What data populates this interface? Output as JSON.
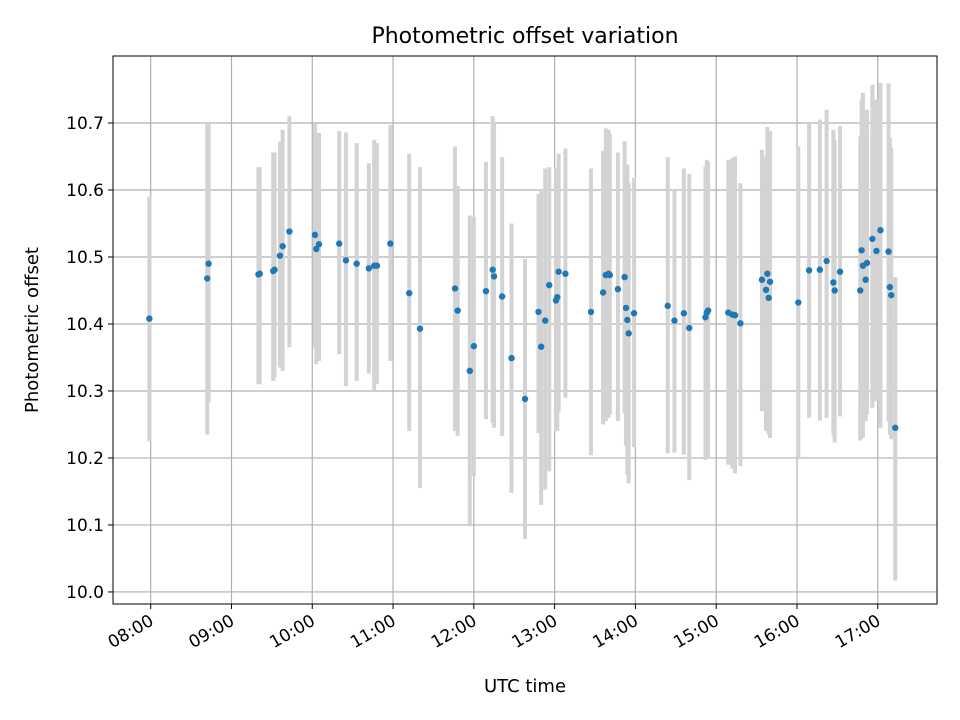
{
  "chart_data": {
    "type": "scatter",
    "title": "Photometric offset variation",
    "xlabel": "UTC time",
    "ylabel": "Photometric offset",
    "x_ticks": [
      "08:00",
      "09:00",
      "10:00",
      "11:00",
      "12:00",
      "13:00",
      "14:00",
      "15:00",
      "16:00",
      "17:00"
    ],
    "y_ticks": [
      "10.0",
      "10.1",
      "10.2",
      "10.3",
      "10.4",
      "10.5",
      "10.6",
      "10.7"
    ],
    "xlim": [
      "07:32",
      "17:44"
    ],
    "ylim": [
      9.982,
      10.8
    ],
    "grid": true,
    "colors": {
      "point": "#1f77b4",
      "errorbar": "#d3d3d3",
      "grid": "#b0b0b0"
    },
    "series": [
      {
        "time": [
          "07:59",
          "08:42",
          "08:43",
          "09:20",
          "09:21",
          "09:31",
          "09:32",
          "09:36",
          "09:38",
          "09:43",
          "10:02",
          "10:03",
          "10:05",
          "10:20",
          "10:25",
          "10:33",
          "10:42",
          "10:46",
          "10:48",
          "10:58",
          "11:12",
          "11:20",
          "11:46",
          "11:48",
          "11:57",
          "12:00",
          "12:09",
          "12:14",
          "12:15",
          "12:21",
          "12:28",
          "12:38",
          "12:48",
          "12:50",
          "12:53",
          "12:56",
          "13:01",
          "13:02",
          "13:03",
          "13:08",
          "13:27",
          "13:36",
          "13:38",
          "13:40",
          "13:41",
          "13:47",
          "13:52",
          "13:53",
          "13:54",
          "13:55",
          "13:59",
          "14:24",
          "14:29",
          "14:36",
          "14:40",
          "14:52",
          "14:53",
          "14:54",
          "15:09",
          "15:12",
          "15:14",
          "15:18",
          "15:34",
          "15:37",
          "15:38",
          "15:39",
          "15:40",
          "16:01",
          "16:09",
          "16:17",
          "16:22",
          "16:27",
          "16:28",
          "16:32",
          "16:47",
          "16:48",
          "16:49",
          "16:51",
          "16:52",
          "16:56",
          "16:59",
          "17:02",
          "17:08",
          "17:09",
          "17:10",
          "17:13"
        ],
        "y": [
          10.408,
          10.468,
          10.49,
          10.474,
          10.475,
          10.479,
          10.481,
          10.502,
          10.516,
          10.538,
          10.533,
          10.512,
          10.519,
          10.52,
          10.495,
          10.49,
          10.483,
          10.487,
          10.487,
          10.52,
          10.446,
          10.393,
          10.453,
          10.42,
          10.33,
          10.367,
          10.449,
          10.481,
          10.471,
          10.441,
          10.349,
          10.288,
          10.418,
          10.366,
          10.405,
          10.458,
          10.435,
          10.44,
          10.478,
          10.475,
          10.418,
          10.447,
          10.473,
          10.475,
          10.473,
          10.452,
          10.47,
          10.424,
          10.406,
          10.386,
          10.416,
          10.427,
          10.405,
          10.416,
          10.394,
          10.41,
          10.417,
          10.42,
          10.417,
          10.414,
          10.413,
          10.401,
          10.466,
          10.451,
          10.475,
          10.439,
          10.463,
          10.432,
          10.48,
          10.481,
          10.494,
          10.462,
          10.45,
          10.478,
          10.45,
          10.51,
          10.487,
          10.466,
          10.491,
          10.527,
          10.509,
          10.54,
          10.508,
          10.455,
          10.443,
          10.245
        ],
        "err_low": [
          10.225,
          10.235,
          10.283,
          10.31,
          10.31,
          10.315,
          10.32,
          10.335,
          10.33,
          10.365,
          10.365,
          10.34,
          10.345,
          10.355,
          10.307,
          10.315,
          10.326,
          10.3,
          10.31,
          10.345,
          10.24,
          10.155,
          10.24,
          10.233,
          10.098,
          10.173,
          10.258,
          10.252,
          10.245,
          10.233,
          10.148,
          10.079,
          10.237,
          10.13,
          10.153,
          10.18,
          10.24,
          10.24,
          10.268,
          10.29,
          10.204,
          10.25,
          10.255,
          10.26,
          10.265,
          10.255,
          10.267,
          10.218,
          10.175,
          10.162,
          10.216,
          10.207,
          10.208,
          10.205,
          10.167,
          10.197,
          10.2,
          10.2,
          10.19,
          10.184,
          10.177,
          10.188,
          10.27,
          10.24,
          10.25,
          10.235,
          10.23,
          10.2,
          10.26,
          10.256,
          10.26,
          10.234,
          10.223,
          10.262,
          10.226,
          10.265,
          10.23,
          10.255,
          10.265,
          10.275,
          10.285,
          10.245,
          10.255,
          10.235,
          10.228,
          10.017
        ],
        "err_high": [
          10.59,
          10.7,
          10.7,
          10.634,
          10.634,
          10.656,
          10.656,
          10.672,
          10.69,
          10.71,
          10.7,
          10.685,
          10.685,
          10.688,
          10.686,
          10.67,
          10.64,
          10.675,
          10.67,
          10.697,
          10.654,
          10.634,
          10.665,
          10.606,
          10.562,
          10.56,
          10.642,
          10.71,
          10.702,
          10.649,
          10.55,
          10.497,
          10.594,
          10.6,
          10.632,
          10.634,
          10.632,
          10.632,
          10.654,
          10.662,
          10.632,
          10.658,
          10.692,
          10.69,
          10.684,
          10.656,
          10.673,
          10.631,
          10.638,
          10.61,
          10.618,
          10.649,
          10.6,
          10.632,
          10.624,
          10.635,
          10.645,
          10.642,
          10.645,
          10.648,
          10.65,
          10.61,
          10.66,
          10.65,
          10.694,
          10.644,
          10.688,
          10.665,
          10.7,
          10.705,
          10.72,
          10.69,
          10.675,
          10.695,
          10.68,
          10.735,
          10.745,
          10.678,
          10.72,
          10.757,
          10.735,
          10.76,
          10.759,
          10.678,
          10.663,
          10.47
        ]
      }
    ]
  }
}
